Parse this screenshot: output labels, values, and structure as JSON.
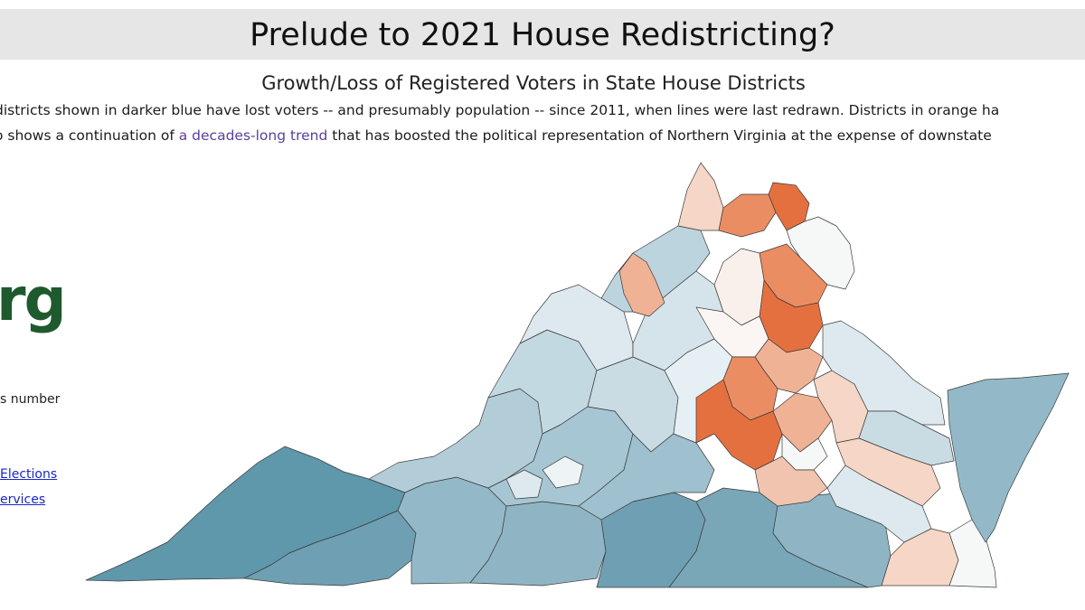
{
  "header": {
    "title": "Prelude to 2021 House Redistricting?",
    "subtitle": "Growth/Loss of Registered Voters in State House Districts"
  },
  "description": {
    "line1": "districts shown in darker blue have lost voters -- and presumably population -- since 2011, when lines were last redrawn. Districts in orange ha",
    "line2_before": "o shows a continuation of ",
    "line2_link": "a decades-long trend",
    "line2_after": " that has boosted the political representation of Northern Virginia at the expense of downstate"
  },
  "sidebar": {
    "logo_fragment": "rg",
    "text_fragment": "s number",
    "link1": "Elections",
    "link2": "ervices"
  },
  "colors": {
    "dark_blue": "#5f97ab",
    "mid_blue": "#93b9c8",
    "light_blue": "#c3d9e2",
    "pale_blue": "#e3eef3",
    "near_white": "#f6f8f8",
    "pale_orange": "#f6d6c6",
    "light_orange": "#f0b295",
    "mid_orange": "#eb8d63",
    "dark_orange": "#e5703f"
  }
}
